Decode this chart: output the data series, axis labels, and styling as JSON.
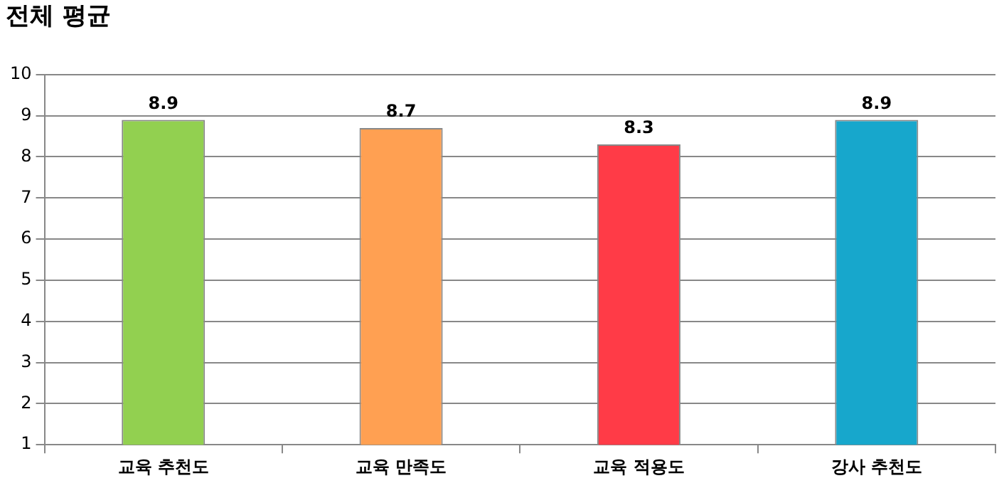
{
  "chart_data": {
    "type": "bar",
    "title": "전체 평균",
    "categories": [
      "교육 추천도",
      "교육 만족도",
      "교육 적용도",
      "강사 추천도"
    ],
    "values": [
      8.9,
      8.7,
      8.3,
      8.9
    ],
    "colors": [
      "#92d050",
      "#ffa052",
      "#ff3b47",
      "#17a7cc"
    ],
    "ylim": [
      1,
      10
    ],
    "yticks": [
      1,
      2,
      3,
      4,
      5,
      6,
      7,
      8,
      9,
      10
    ],
    "grid": "y",
    "legend": false,
    "data_labels": true
  }
}
